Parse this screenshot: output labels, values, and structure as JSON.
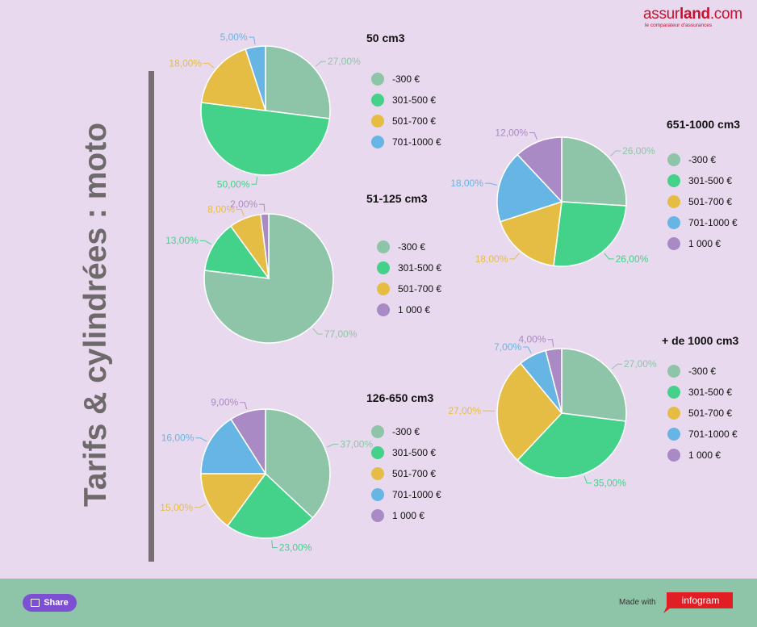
{
  "title": "Tarifs & cylindrées : moto",
  "logo": {
    "brand_light": "assur",
    "brand_bold": "land",
    "suffix": ".com",
    "tagline": "le comparateur d'assurances"
  },
  "footer": {
    "share_label": "Share",
    "made_with": "Made with",
    "infogram": "infogram"
  },
  "colors": {
    "-300 €": "#8ec5a8",
    "301-500 €": "#44d18a",
    "501-700 €": "#e5bd45",
    "701-1000 €": "#66b5e4",
    "1 000 €": "#a98ac4",
    "axis_bar": "#766e72",
    "title_text": "#6e6a6c"
  },
  "chart_data": [
    {
      "type": "pie",
      "title": "50 cm3",
      "categories": [
        "-300 €",
        "301-500 €",
        "501-700 €",
        "701-1000 €"
      ],
      "values": [
        27,
        50,
        18,
        5
      ],
      "labels": [
        "27,00%",
        "50,00%",
        "18,00%",
        "5,00%"
      ],
      "legend": [
        "-300 €",
        "301-500 €",
        "501-700 €",
        "701-1000 €"
      ]
    },
    {
      "type": "pie",
      "title": "51-125 cm3",
      "categories": [
        "-300 €",
        "301-500 €",
        "501-700 €",
        "1 000 €"
      ],
      "values": [
        77,
        13,
        8,
        2
      ],
      "labels": [
        "77,00%",
        "13,00%",
        "8,00%",
        "2,00%"
      ],
      "legend": [
        "-300 €",
        "301-500 €",
        "501-700 €",
        "1 000 €"
      ]
    },
    {
      "type": "pie",
      "title": "126-650 cm3",
      "categories": [
        "-300 €",
        "301-500 €",
        "501-700 €",
        "701-1000 €",
        "1 000 €"
      ],
      "values": [
        37,
        23,
        15,
        16,
        9
      ],
      "labels": [
        "37,00%",
        "23,00%",
        "15,00%",
        "16,00%",
        "9,00%"
      ],
      "legend": [
        "-300 €",
        "301-500 €",
        "501-700 €",
        "701-1000 €",
        "1 000 €"
      ]
    },
    {
      "type": "pie",
      "title": "651-1000 cm3",
      "categories": [
        "-300 €",
        "301-500 €",
        "501-700 €",
        "701-1000 €",
        "1 000 €"
      ],
      "values": [
        26,
        26,
        18,
        18,
        12
      ],
      "labels": [
        "26,00%",
        "26,00%",
        "18,00%",
        "18,00%",
        "12,00%"
      ],
      "legend": [
        "-300 €",
        "301-500 €",
        "501-700 €",
        "701-1000 €",
        "1 000 €"
      ]
    },
    {
      "type": "pie",
      "title": "+ de 1000 cm3",
      "categories": [
        "-300 €",
        "301-500 €",
        "501-700 €",
        "701-1000 €",
        "1 000 €"
      ],
      "values": [
        27,
        35,
        27,
        7,
        4
      ],
      "labels": [
        "27,00%",
        "35,00%",
        "27,00%",
        "7,00%",
        "4,00%"
      ],
      "legend": [
        "-300 €",
        "301-500 €",
        "501-700 €",
        "701-1000 €",
        "1 000 €"
      ]
    }
  ]
}
